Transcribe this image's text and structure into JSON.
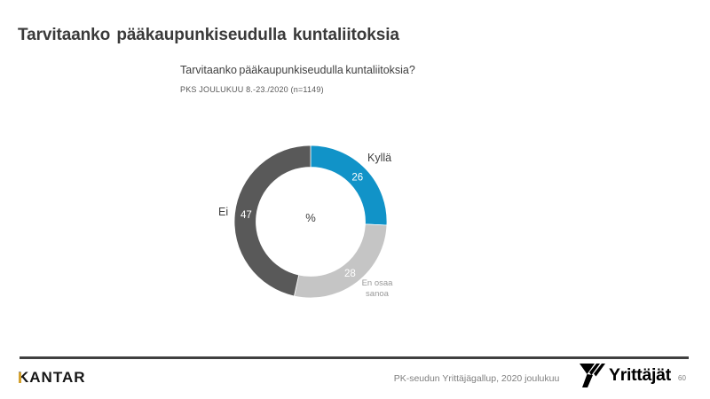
{
  "slide": {
    "title": "Tarvitaanko pääkaupunkiseudulla kuntaliitoksia"
  },
  "chart_data": {
    "type": "pie",
    "subtype": "donut",
    "title": "Tarvitaanko pääkaupunkiseudulla kuntaliitoksia?",
    "subtitle": "PKS JOULUKUU 8.-23./2020 (n=1149)",
    "center_label": "%",
    "unit": "%",
    "start_angle_deg": 0,
    "clockwise": true,
    "categories": [
      "Kyllä",
      "En osaa sanoa",
      "Ei"
    ],
    "values": [
      26,
      28,
      47
    ],
    "colors": [
      "#1193c8",
      "#c5c5c5",
      "#595959"
    ],
    "slugs": [
      "kylla",
      "en-osaa-sanoa",
      "ei"
    ],
    "value_label_color": "#ffffff"
  },
  "footer": {
    "kantar_logo_text": "KANTAR",
    "kantar_gold": "#d4a12f",
    "source_text": "PK-seudun Yrittäjägallup, 2020 joulukuu",
    "yrittajat_logo_text": "Yrittäjät",
    "page_number": "60"
  }
}
